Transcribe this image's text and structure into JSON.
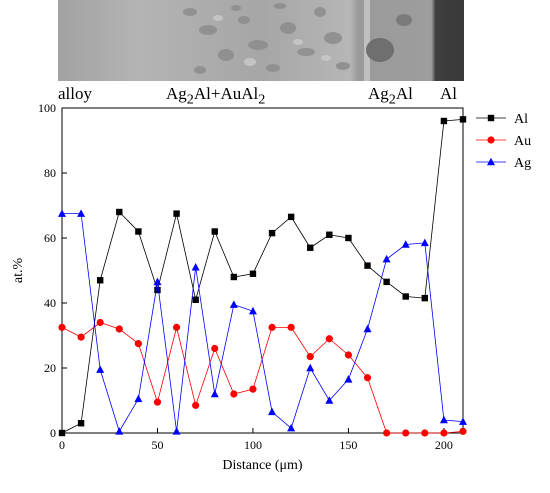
{
  "regions": {
    "alloy": {
      "text": "alloy"
    },
    "mixed": {
      "main": "Ag",
      "sub1": "2",
      "mid": "Al+AuAl",
      "sub2": "2"
    },
    "ag2al": {
      "main": "Ag",
      "sub1": "2",
      "tail": "Al"
    },
    "al": {
      "text": "Al"
    }
  },
  "colors": {
    "Al": "#000000",
    "Au": "#ff0000",
    "Ag": "#0000ff"
  },
  "chart_data": {
    "type": "line",
    "xlabel": "Distance (μm)",
    "ylabel": "at.%",
    "xlim": [
      0,
      210
    ],
    "ylim": [
      0,
      100
    ],
    "xticks": [
      "0",
      "50",
      "100",
      "150",
      "200"
    ],
    "yticks": [
      "0",
      "20",
      "40",
      "60",
      "80",
      "100"
    ],
    "legend_position": "top-right",
    "series": [
      {
        "name": "Al",
        "marker": "square",
        "color": "#000000",
        "x": [
          0,
          10,
          20,
          30,
          40,
          50,
          60,
          70,
          80,
          90,
          100,
          110,
          120,
          130,
          140,
          150,
          160,
          170,
          180,
          190,
          200,
          210
        ],
        "y": [
          0,
          3,
          47,
          68,
          62,
          44,
          67.5,
          41,
          62,
          48,
          49,
          61.5,
          66.5,
          57,
          61,
          60,
          51.5,
          46.5,
          42,
          41.5,
          96,
          96.5
        ]
      },
      {
        "name": "Au",
        "marker": "circle",
        "color": "#ff0000",
        "x": [
          0,
          10,
          20,
          30,
          40,
          50,
          60,
          70,
          80,
          90,
          100,
          110,
          120,
          130,
          140,
          150,
          160,
          170,
          180,
          190,
          200,
          210
        ],
        "y": [
          32.5,
          29.5,
          34,
          32,
          27.5,
          9.5,
          32.5,
          8.5,
          26,
          12,
          13.5,
          32.5,
          32.5,
          23.5,
          29,
          24,
          17,
          0,
          0,
          0,
          0,
          0.5
        ]
      },
      {
        "name": "Ag",
        "marker": "triangle",
        "color": "#0000ff",
        "x": [
          0,
          10,
          20,
          30,
          40,
          50,
          60,
          70,
          80,
          90,
          100,
          110,
          120,
          130,
          140,
          150,
          160,
          170,
          180,
          190,
          200,
          210
        ],
        "y": [
          67.5,
          67.5,
          19.5,
          0.5,
          10.5,
          46.5,
          0.5,
          51,
          12,
          39.5,
          37.5,
          6.5,
          1.5,
          20,
          10,
          16.5,
          32,
          53.5,
          58,
          58.5,
          4,
          3.5
        ]
      }
    ]
  }
}
